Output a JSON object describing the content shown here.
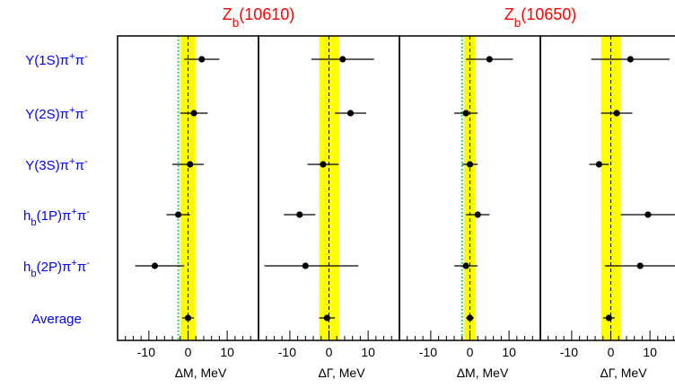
{
  "colors": {
    "band": "#ffff00",
    "dotted_line": "#00cc33",
    "group_title": "#ff0000",
    "row_label": "#0000ff",
    "axis": "#000000"
  },
  "group_titles": [
    "Z_b(10610)",
    "Z_b(10650)"
  ],
  "row_labels": [
    "Υ(1S)π⁺π⁻",
    "Υ(2S)π⁺π⁻",
    "Υ(3S)π⁺π⁻",
    "h_b(1P)π⁺π⁻",
    "h_b(2P)π⁺π⁻",
    "Average"
  ],
  "chart_data": [
    {
      "type": "scatter",
      "group": "Z_b(10610)",
      "xlabel": "ΔM, MeV",
      "xlim": [
        -18,
        18
      ],
      "xticks": [
        -10,
        0,
        10
      ],
      "band": [
        -2,
        2
      ],
      "dotted_line_x": -2.5,
      "x": [
        3.5,
        1.5,
        0.5,
        -2.5,
        -8.5,
        0.0
      ],
      "xerr_low": [
        4.5,
        3.5,
        4.5,
        3.0,
        5.0,
        1.5
      ],
      "xerr_high": [
        4.5,
        3.5,
        3.5,
        3.0,
        7.5,
        1.5
      ]
    },
    {
      "type": "scatter",
      "group": "Z_b(10610)",
      "xlabel": "ΔΓ, MeV",
      "xlim": [
        -18,
        18
      ],
      "xticks": [
        -10,
        0,
        10
      ],
      "band": [
        -2.5,
        2.5
      ],
      "x": [
        3.5,
        5.5,
        -1.5,
        -7.5,
        -6.0,
        -0.5
      ],
      "xerr_low": [
        8.0,
        4.0,
        4.0,
        4.0,
        10.5,
        2.0
      ],
      "xerr_high": [
        8.0,
        4.0,
        4.0,
        4.0,
        13.5,
        2.0
      ]
    },
    {
      "type": "scatter",
      "group": "Z_b(10650)",
      "xlabel": "ΔM, MeV",
      "xlim": [
        -18,
        18
      ],
      "xticks": [
        -10,
        0,
        10
      ],
      "band": [
        -1.5,
        1.5
      ],
      "dotted_line_x": -2.0,
      "x": [
        5.0,
        -1.0,
        0.0,
        2.0,
        -1.0,
        0.0
      ],
      "xerr_low": [
        6.0,
        3.0,
        2.0,
        3.0,
        3.0,
        1.0
      ],
      "xerr_high": [
        6.0,
        3.0,
        2.0,
        3.0,
        3.0,
        1.0
      ]
    },
    {
      "type": "scatter",
      "group": "Z_b(10650)",
      "xlabel": "ΔΓ, MeV",
      "xlim": [
        -18,
        18
      ],
      "xticks": [
        -10,
        0,
        10
      ],
      "band": [
        -2.5,
        2.5
      ],
      "x": [
        5.0,
        1.5,
        -3.0,
        9.5,
        7.5,
        -0.5
      ],
      "xerr_low": [
        10.0,
        4.0,
        2.5,
        7.0,
        9.0,
        1.5
      ],
      "xerr_high": [
        10.0,
        4.0,
        2.5,
        7.0,
        9.0,
        1.5
      ]
    }
  ]
}
